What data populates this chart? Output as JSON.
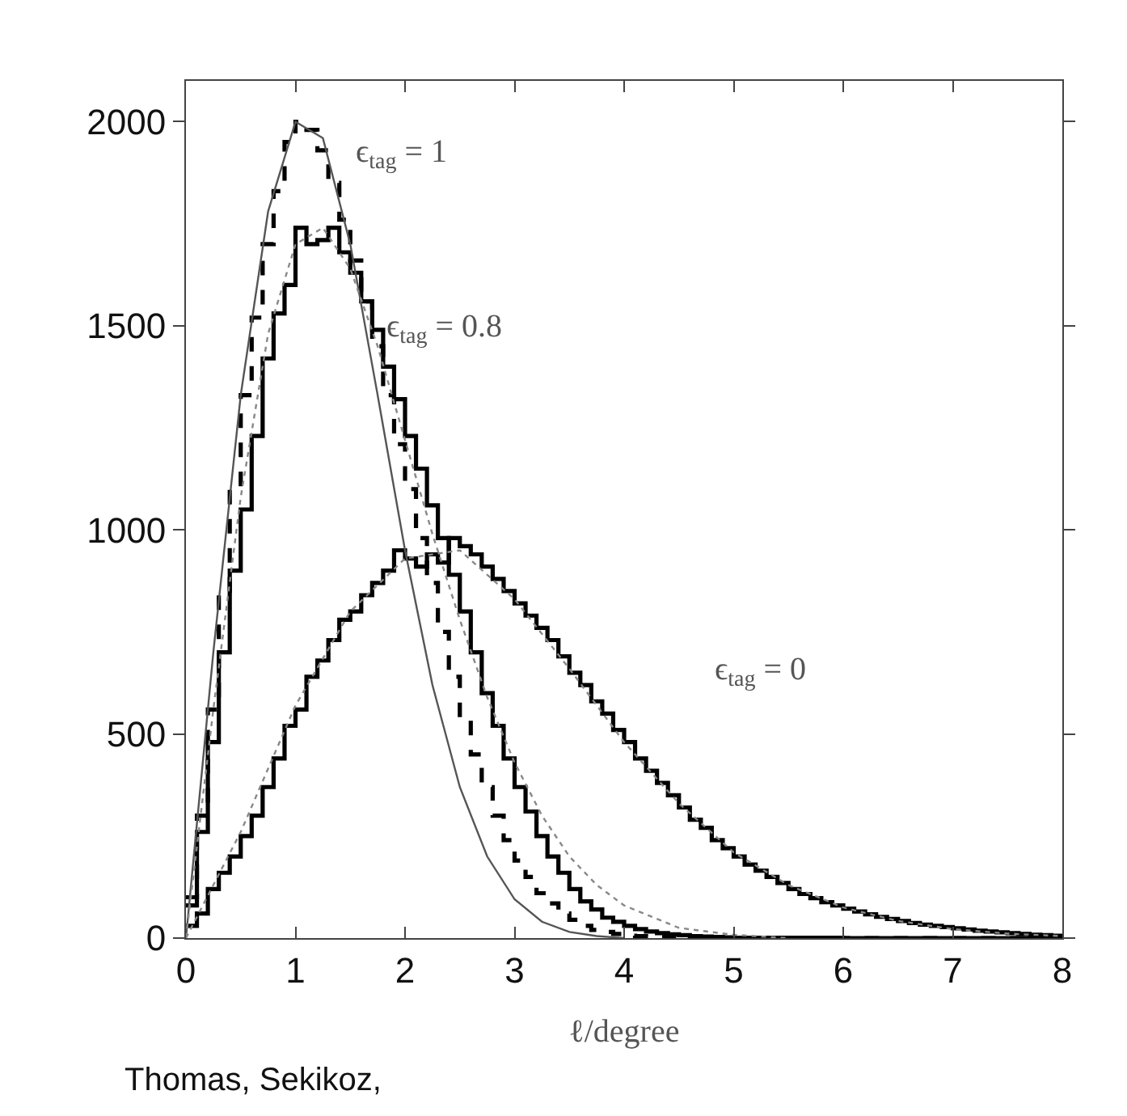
{
  "chart_data": {
    "type": "line",
    "xlabel": "ℓ/degree",
    "xlim": [
      0,
      8
    ],
    "xticks": [
      0,
      1,
      2,
      3,
      4,
      5,
      6,
      7,
      8
    ],
    "ylim": [
      0,
      2100
    ],
    "yticks": [
      0,
      500,
      1000,
      1500,
      2000
    ],
    "marker": "none",
    "series": [
      {
        "type": "step",
        "color": "#000000",
        "line_style": "dashed",
        "x": [
          0.0,
          0.1,
          0.2,
          0.3,
          0.4,
          0.5,
          0.6,
          0.7,
          0.8,
          0.9,
          1.0,
          1.1,
          1.2,
          1.3,
          1.4,
          1.5,
          1.6,
          1.7,
          1.8,
          1.9,
          2.0,
          2.1,
          2.2,
          2.3,
          2.4,
          2.5,
          2.6,
          2.7,
          2.8,
          2.9,
          3.0,
          3.1,
          3.2,
          3.3,
          3.4,
          3.5,
          3.6,
          3.7,
          3.8,
          3.9,
          4.0,
          4.1,
          4.2,
          4.3,
          4.4,
          4.5,
          4.6,
          4.7,
          4.8,
          4.9,
          5.0,
          5.5,
          6.0,
          6.5,
          7.0,
          7.5,
          8.0
        ],
        "values": [
          100,
          300,
          560,
          850,
          1100,
          1330,
          1520,
          1700,
          1830,
          1950,
          2000,
          1980,
          1930,
          1850,
          1760,
          1660,
          1560,
          1450,
          1330,
          1210,
          1100,
          980,
          870,
          750,
          640,
          540,
          450,
          370,
          300,
          240,
          190,
          150,
          110,
          85,
          60,
          45,
          30,
          20,
          15,
          10,
          6,
          5,
          4,
          3,
          2,
          2,
          1,
          1,
          1,
          0,
          0,
          0,
          0,
          0,
          0,
          0,
          0
        ]
      },
      {
        "type": "step",
        "color": "#000000",
        "line_style": "solid",
        "x": [
          0.0,
          0.1,
          0.2,
          0.3,
          0.4,
          0.5,
          0.6,
          0.7,
          0.8,
          0.9,
          1.0,
          1.1,
          1.2,
          1.3,
          1.4,
          1.5,
          1.6,
          1.7,
          1.8,
          1.9,
          2.0,
          2.1,
          2.2,
          2.3,
          2.4,
          2.5,
          2.6,
          2.7,
          2.8,
          2.9,
          3.0,
          3.1,
          3.2,
          3.3,
          3.4,
          3.5,
          3.6,
          3.7,
          3.8,
          3.9,
          4.0,
          4.1,
          4.2,
          4.3,
          4.4,
          4.5,
          4.6,
          4.7,
          4.8,
          4.9,
          5.0,
          5.5,
          6.0,
          6.5,
          7.0,
          7.5,
          8.0
        ],
        "values": [
          80,
          260,
          480,
          700,
          900,
          1050,
          1230,
          1420,
          1530,
          1600,
          1740,
          1700,
          1710,
          1740,
          1680,
          1630,
          1560,
          1490,
          1400,
          1320,
          1230,
          1150,
          1060,
          980,
          890,
          800,
          700,
          600,
          520,
          440,
          370,
          310,
          250,
          200,
          160,
          120,
          90,
          70,
          50,
          40,
          30,
          22,
          16,
          12,
          9,
          7,
          5,
          4,
          3,
          2,
          1,
          1,
          0,
          0,
          0,
          0,
          0
        ]
      },
      {
        "type": "step",
        "color": "#000000",
        "line_style": "solid",
        "x": [
          0.0,
          0.1,
          0.2,
          0.3,
          0.4,
          0.5,
          0.6,
          0.7,
          0.8,
          0.9,
          1.0,
          1.1,
          1.2,
          1.3,
          1.4,
          1.5,
          1.6,
          1.7,
          1.8,
          1.9,
          2.0,
          2.1,
          2.2,
          2.3,
          2.4,
          2.5,
          2.6,
          2.7,
          2.8,
          2.9,
          3.0,
          3.1,
          3.2,
          3.3,
          3.4,
          3.5,
          3.6,
          3.7,
          3.8,
          3.9,
          4.0,
          4.1,
          4.2,
          4.3,
          4.4,
          4.5,
          4.6,
          4.7,
          4.8,
          4.9,
          5.0,
          5.1,
          5.2,
          5.3,
          5.4,
          5.5,
          5.6,
          5.7,
          5.8,
          5.9,
          6.0,
          6.1,
          6.2,
          6.3,
          6.4,
          6.5,
          6.6,
          6.7,
          6.8,
          6.9,
          7.0,
          7.1,
          7.2,
          7.3,
          7.4,
          7.5,
          7.6,
          7.7,
          7.8,
          7.9,
          8.0
        ],
        "values": [
          30,
          60,
          120,
          160,
          200,
          250,
          300,
          370,
          440,
          520,
          560,
          640,
          680,
          730,
          780,
          800,
          840,
          870,
          900,
          950,
          930,
          910,
          940,
          920,
          980,
          960,
          940,
          910,
          880,
          850,
          820,
          790,
          760,
          730,
          690,
          650,
          620,
          580,
          550,
          510,
          480,
          440,
          410,
          380,
          350,
          320,
          290,
          270,
          240,
          220,
          200,
          180,
          165,
          150,
          135,
          120,
          108,
          98,
          88,
          80,
          72,
          65,
          58,
          52,
          47,
          42,
          37,
          33,
          30,
          27,
          24,
          21,
          18,
          16,
          14,
          12,
          10,
          8,
          7,
          6,
          6
        ]
      },
      {
        "color": "#555555",
        "line_style": "solid",
        "x": [
          0,
          0.25,
          0.5,
          0.75,
          1,
          1.25,
          1.5,
          1.75,
          2,
          2.25,
          2.5,
          2.75,
          3,
          3.25,
          3.5,
          3.75,
          4
        ],
        "values": [
          0,
          700,
          1330,
          1780,
          2000,
          1960,
          1700,
          1330,
          950,
          620,
          370,
          200,
          95,
          40,
          15,
          5,
          0
        ]
      },
      {
        "color": "#888888",
        "line_style": "dotted",
        "x": [
          0,
          0.25,
          0.5,
          0.75,
          1,
          1.25,
          1.5,
          1.75,
          2,
          2.25,
          2.5,
          2.75,
          3,
          3.25,
          3.5,
          3.75,
          4,
          4.5,
          5,
          5.5
        ],
        "values": [
          0,
          560,
          1080,
          1480,
          1700,
          1740,
          1640,
          1450,
          1220,
          990,
          780,
          590,
          430,
          300,
          200,
          130,
          80,
          25,
          8,
          0
        ]
      },
      {
        "color": "#888888",
        "line_style": "dotted",
        "x": [
          0,
          0.5,
          1,
          1.5,
          2,
          2.5,
          3,
          3.5,
          4,
          4.5,
          5,
          5.5,
          6,
          6.5,
          7,
          7.5,
          8
        ],
        "values": [
          0,
          260,
          570,
          800,
          930,
          950,
          830,
          660,
          480,
          330,
          210,
          130,
          75,
          42,
          22,
          11,
          5
        ]
      }
    ],
    "annotations": [
      "ϵ$_{tag}$ = 1",
      "ϵ$_{tag}$ = 0.8",
      "ϵ$_{tag}$ = 0",
      "Thomas, Sekikoz,"
    ]
  }
}
